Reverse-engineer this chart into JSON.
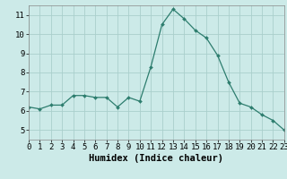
{
  "x": [
    0,
    1,
    2,
    3,
    4,
    5,
    6,
    7,
    8,
    9,
    10,
    11,
    12,
    13,
    14,
    15,
    16,
    17,
    18,
    19,
    20,
    21,
    22,
    23
  ],
  "y": [
    6.2,
    6.1,
    6.3,
    6.3,
    6.8,
    6.8,
    6.7,
    6.7,
    6.2,
    6.7,
    6.5,
    8.3,
    10.5,
    11.3,
    10.8,
    10.2,
    9.8,
    8.9,
    7.5,
    6.4,
    6.2,
    5.8,
    5.5,
    5.0
  ],
  "xlabel": "Humidex (Indice chaleur)",
  "xlim": [
    0,
    23
  ],
  "ylim": [
    4.5,
    11.5
  ],
  "yticks": [
    5,
    6,
    7,
    8,
    9,
    10,
    11
  ],
  "xticks": [
    0,
    1,
    2,
    3,
    4,
    5,
    6,
    7,
    8,
    9,
    10,
    11,
    12,
    13,
    14,
    15,
    16,
    17,
    18,
    19,
    20,
    21,
    22,
    23
  ],
  "line_color": "#2d7d6e",
  "marker_size": 2.0,
  "bg_color": "#cceae8",
  "grid_color": "#aacfcc",
  "xlabel_fontsize": 7.5,
  "tick_fontsize": 6.5
}
